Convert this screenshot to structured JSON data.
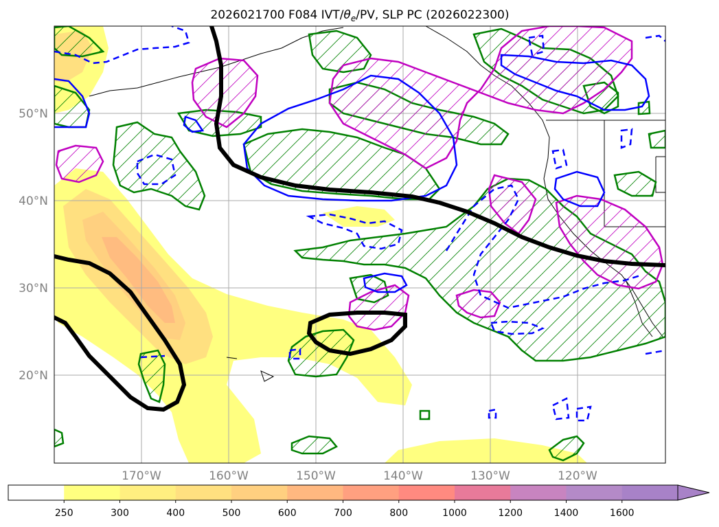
{
  "title": {
    "prefix": "2026021700 F084 IVT/",
    "theta": "θ",
    "theta_sub": "e",
    "suffix": "/PV, SLP PC (2026022300)"
  },
  "map": {
    "lat_labels": [
      "50°N",
      "40°N",
      "30°N",
      "20°N"
    ],
    "lon_labels": [
      "170°W",
      "160°W",
      "150°W",
      "140°W",
      "130°W",
      "120°W"
    ],
    "lat_values": [
      50,
      40,
      30,
      20
    ],
    "lon_values": [
      -170,
      -160,
      -150,
      -140,
      -130,
      -120
    ],
    "lat_range": [
      10,
      60
    ],
    "lon_range": [
      -180,
      -110
    ],
    "gridlines": true
  },
  "colorbar": {
    "levels": [
      "250",
      "300",
      "400",
      "500",
      "600",
      "700",
      "800",
      "1000",
      "1200",
      "1400",
      "1600"
    ],
    "colors": [
      "#ffffff",
      "#ffff80",
      "#ffef80",
      "#ffe080",
      "#ffd080",
      "#ffb880",
      "#ffa080",
      "#ff8a80",
      "#e87a9a",
      "#c884c0",
      "#b48ac8",
      "#a882c8"
    ],
    "extend": "max"
  },
  "contour_colors": {
    "slp": "#000000",
    "theta_e": "#008000",
    "pv_positive": "#c000c0",
    "pv_dashed": "#0000ff",
    "ivt_low": "#ffff80",
    "ivt_mid": "#ffd080",
    "ivt_high": "#ffb880",
    "coast": "#000000"
  }
}
